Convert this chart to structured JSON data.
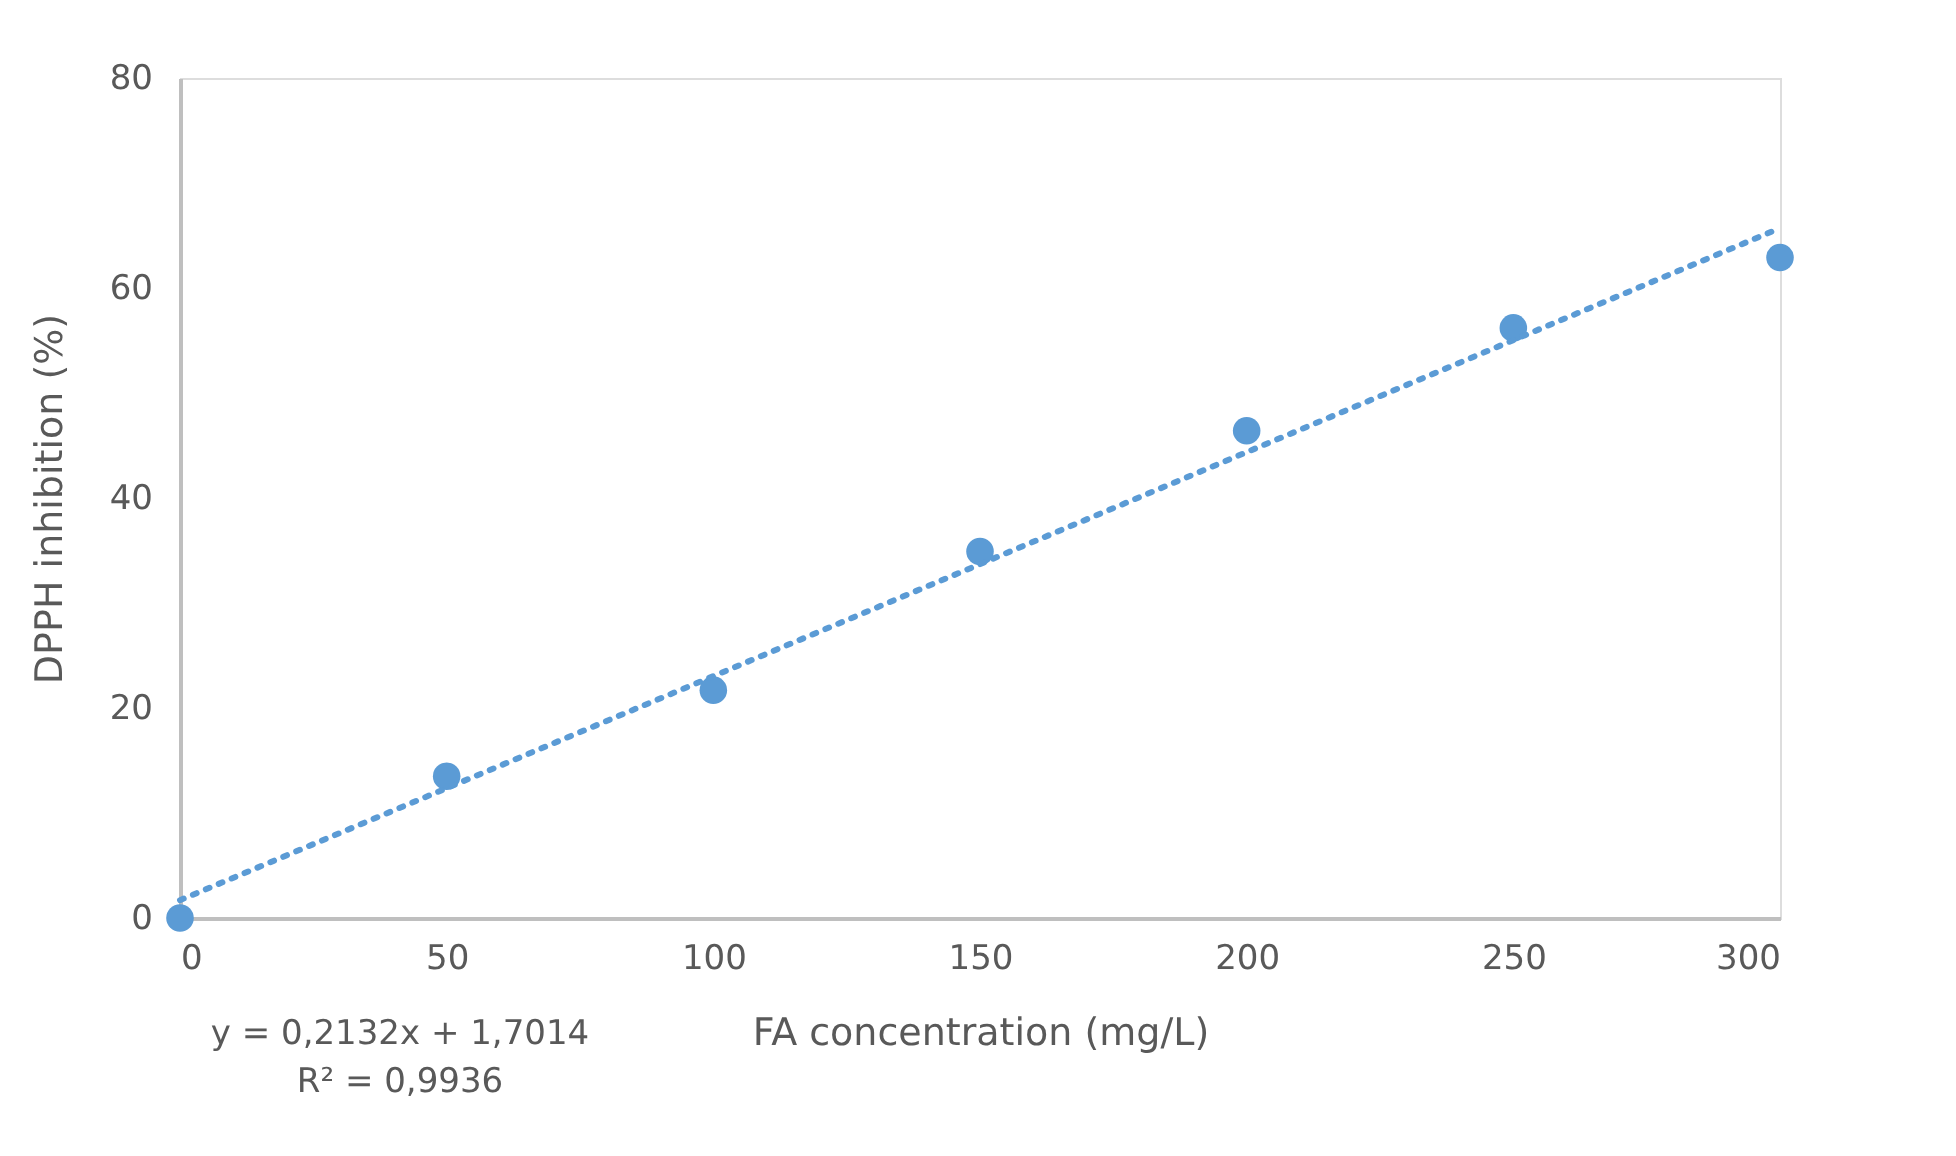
{
  "chart_data": {
    "type": "scatter",
    "xlabel": "FA concentration (mg/L)",
    "ylabel": "DPPH inhibition (%)",
    "x": [
      0,
      50,
      100,
      150,
      200,
      250,
      300
    ],
    "series": [
      {
        "color": "#5b9bd5",
        "marker": "circle",
        "values": [
          0,
          13.5,
          21.7,
          34.9,
          46.4,
          56.2,
          62.9
        ]
      },
      {
        "type": "line",
        "color": "#5b9bd5",
        "line_style": "dotted",
        "x": [
          0,
          300
        ],
        "values": [
          1.7,
          65.7
        ]
      }
    ],
    "xlim": [
      0,
      300
    ],
    "xticks": [
      0,
      50,
      100,
      150,
      200,
      250,
      300
    ],
    "ylim": [
      0,
      80
    ],
    "yticks": [
      0,
      20,
      40,
      60,
      80
    ],
    "grid": false,
    "annotations": [
      "y = 0,2132x + 1,7014",
      "R² = 0,9936"
    ]
  }
}
